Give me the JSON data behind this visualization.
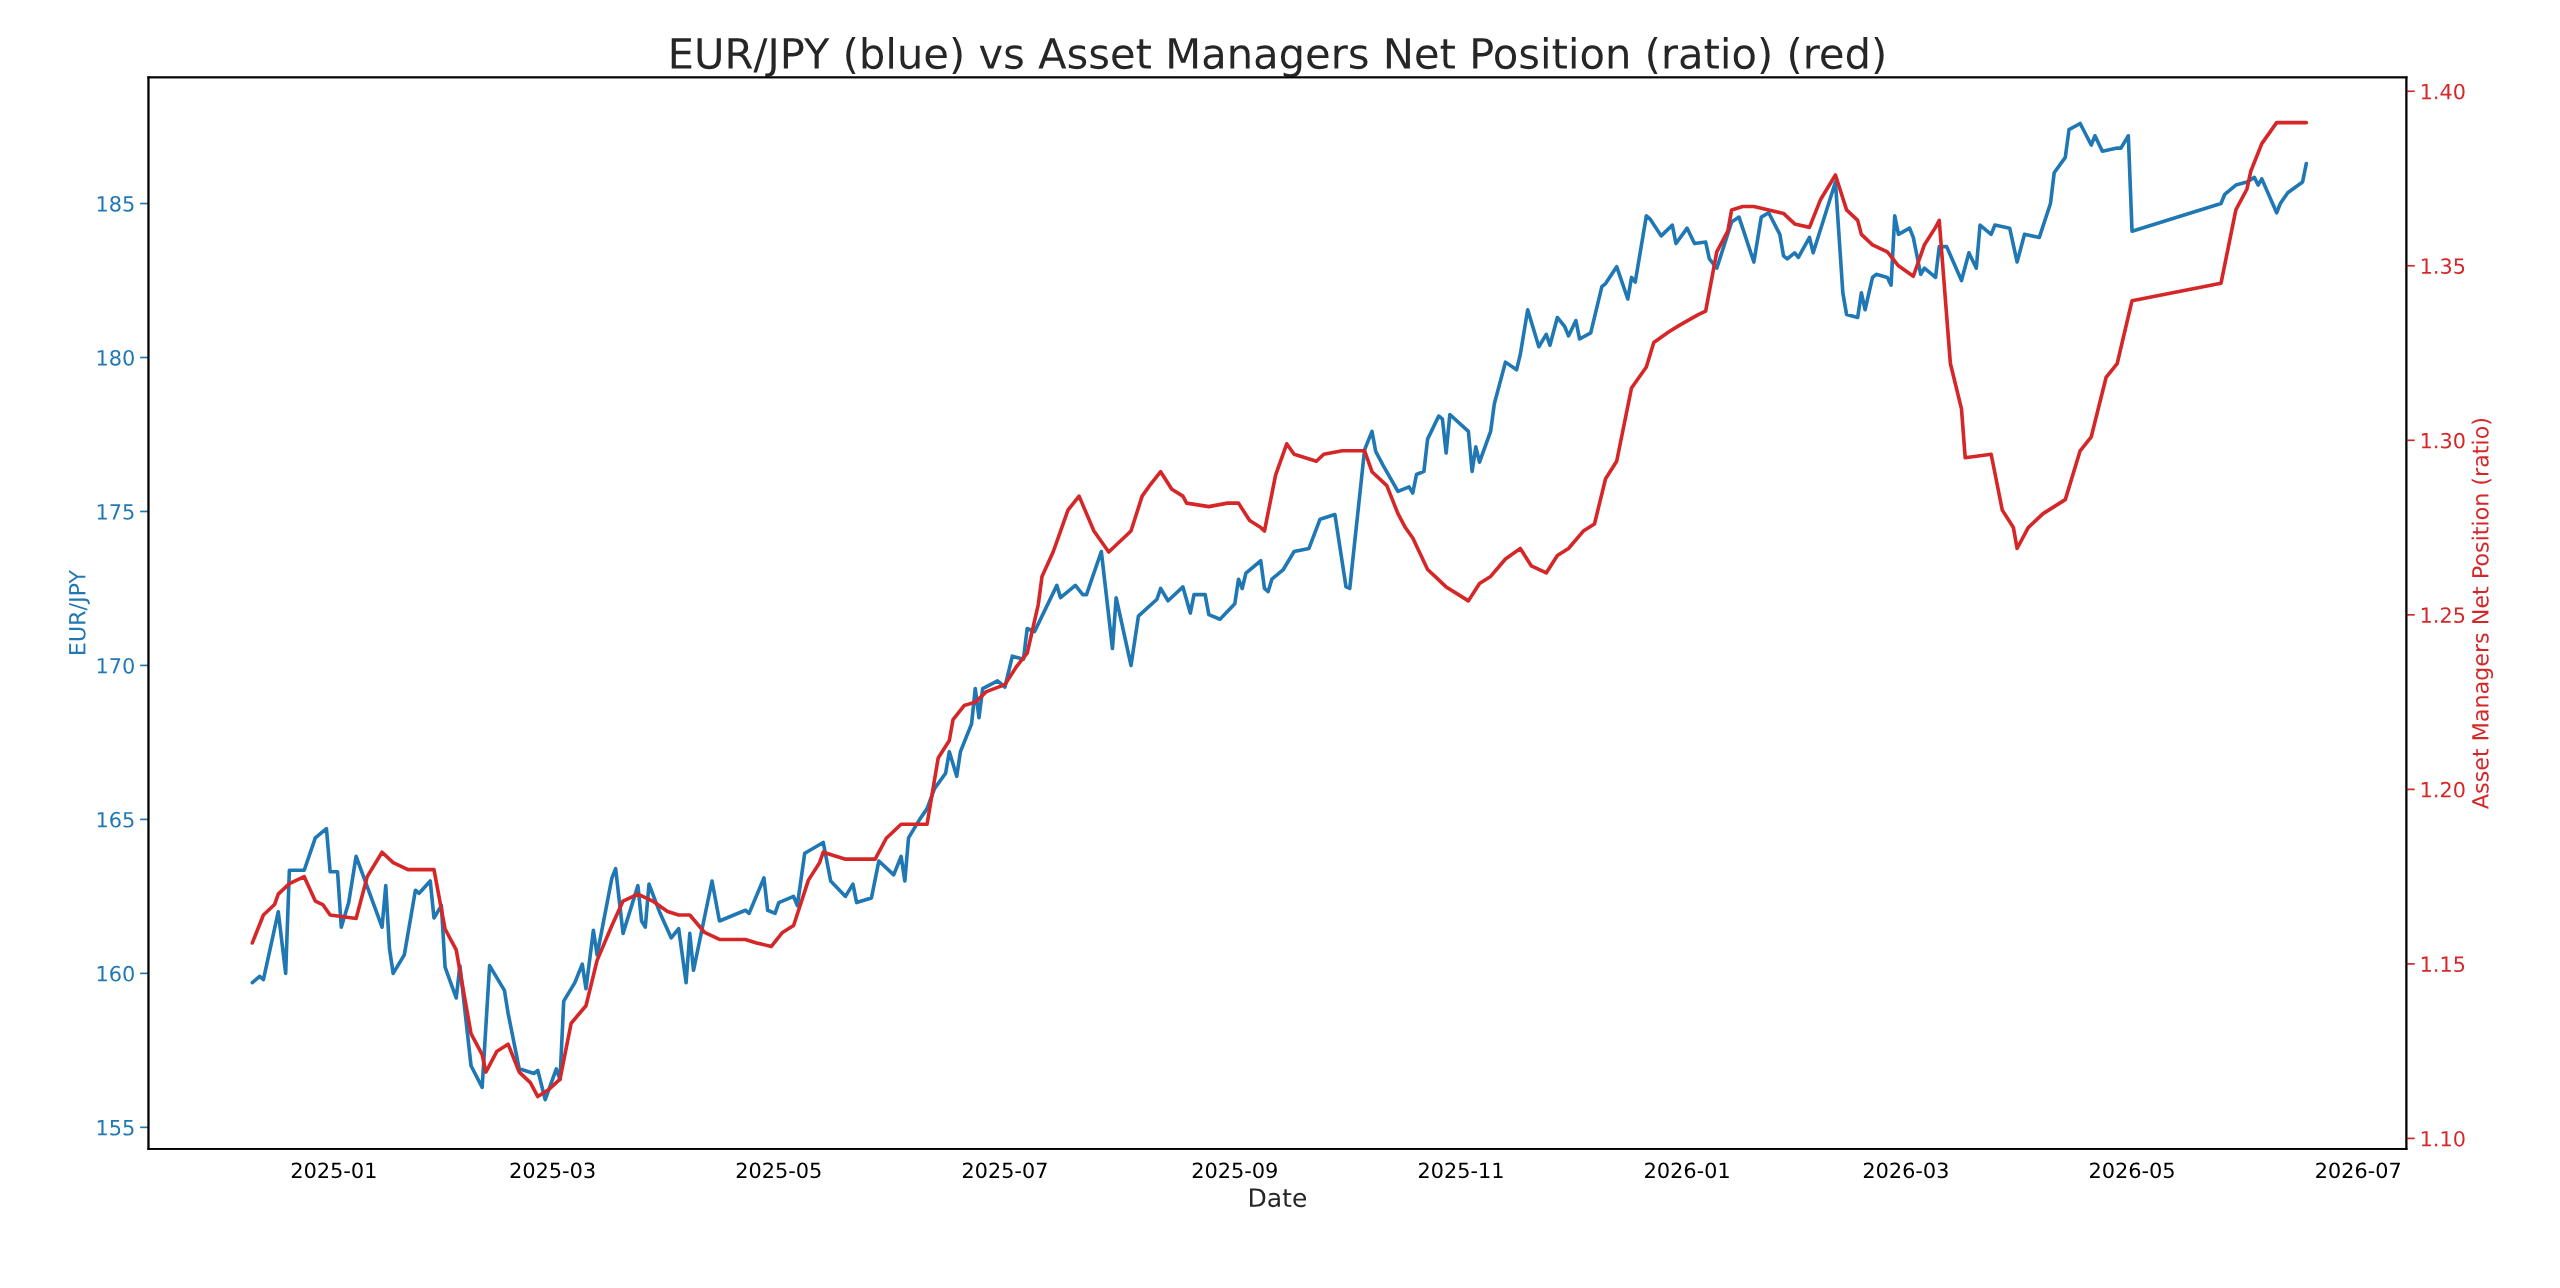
{
  "chart_data": {
    "type": "line",
    "title": "EUR/JPY (blue) vs Asset Managers Net Position (ratio) (red)",
    "xlabel": "Date",
    "ylabel": "EUR/JPY",
    "y2label": "Asset Managers Net Position (ratio)",
    "xlim": [
      "2024-11-12",
      "2026-07-14"
    ],
    "xticks": [
      "2025-01",
      "2025-03",
      "2025-05",
      "2025-07",
      "2025-09",
      "2025-11",
      "2026-01",
      "2026-03",
      "2026-05",
      "2026-07"
    ],
    "ylim": [
      154.3,
      189.1
    ],
    "yticks": [
      155,
      160,
      165,
      170,
      175,
      180,
      185
    ],
    "y2lim": [
      1.097,
      1.404
    ],
    "y2ticks": [
      {
        "value": 1.1,
        "label": "1.10"
      },
      {
        "value": 1.15,
        "label": "1.15"
      },
      {
        "value": 1.2,
        "label": "1.20"
      },
      {
        "value": 1.25,
        "label": "1.25"
      },
      {
        "value": 1.3,
        "label": "1.30"
      },
      {
        "value": 1.35,
        "label": "1.35"
      },
      {
        "value": 1.4,
        "label": "1.40"
      }
    ],
    "grid": false,
    "marker": "none",
    "line_style": "solid",
    "series": [
      {
        "color": "#1f77b4",
        "axis": "y",
        "x": [
          "2024-12-10",
          "2024-12-12",
          "2024-12-13",
          "2024-12-17",
          "2024-12-19",
          "2024-12-20",
          "2024-12-24",
          "2024-12-27",
          "2024-12-30",
          "2024-12-31",
          "2025-01-02",
          "2025-01-03",
          "2025-01-05",
          "2025-01-07",
          "2025-01-14",
          "2025-01-15",
          "2025-01-16",
          "2025-01-17",
          "2025-01-20",
          "2025-01-23",
          "2025-01-24",
          "2025-01-27",
          "2025-01-28",
          "2025-01-30",
          "2025-01-31",
          "2025-02-03",
          "2025-02-04",
          "2025-02-07",
          "2025-02-10",
          "2025-02-12",
          "2025-02-16",
          "2025-02-17",
          "2025-02-20",
          "2025-02-24",
          "2025-02-25",
          "2025-02-27",
          "2025-03-02",
          "2025-03-03",
          "2025-03-04",
          "2025-03-07",
          "2025-03-09",
          "2025-03-10",
          "2025-03-12",
          "2025-03-13",
          "2025-03-17",
          "2025-03-18",
          "2025-03-20",
          "2025-03-24",
          "2025-03-25",
          "2025-03-26",
          "2025-03-27",
          "2025-03-30",
          "2025-04-02",
          "2025-04-04",
          "2025-04-06",
          "2025-04-07",
          "2025-04-08",
          "2025-04-13",
          "2025-04-15",
          "2025-04-22",
          "2025-04-23",
          "2025-04-27",
          "2025-04-28",
          "2025-04-30",
          "2025-05-01",
          "2025-05-05",
          "2025-05-06",
          "2025-05-08",
          "2025-05-13",
          "2025-05-15",
          "2025-05-19",
          "2025-05-21",
          "2025-05-22",
          "2025-05-26",
          "2025-05-28",
          "2025-06-01",
          "2025-06-03",
          "2025-06-04",
          "2025-06-05",
          "2025-06-08",
          "2025-06-10",
          "2025-06-12",
          "2025-06-15",
          "2025-06-16",
          "2025-06-18",
          "2025-06-19",
          "2025-06-22",
          "2025-06-23",
          "2025-06-24",
          "2025-06-25",
          "2025-06-29",
          "2025-07-01",
          "2025-07-03",
          "2025-07-06",
          "2025-07-07",
          "2025-07-09",
          "2025-07-15",
          "2025-07-16",
          "2025-07-20",
          "2025-07-22",
          "2025-07-23",
          "2025-07-27",
          "2025-07-30",
          "2025-07-31",
          "2025-08-04",
          "2025-08-06",
          "2025-08-11",
          "2025-08-12",
          "2025-08-14",
          "2025-08-18",
          "2025-08-20",
          "2025-08-21",
          "2025-08-24",
          "2025-08-25",
          "2025-08-28",
          "2025-09-01",
          "2025-09-02",
          "2025-09-03",
          "2025-09-04",
          "2025-09-08",
          "2025-09-09",
          "2025-09-10",
          "2025-09-11",
          "2025-09-14",
          "2025-09-17",
          "2025-09-21",
          "2025-09-24",
          "2025-09-28",
          "2025-10-01",
          "2025-10-02",
          "2025-10-06",
          "2025-10-08",
          "2025-10-09",
          "2025-10-11",
          "2025-10-15",
          "2025-10-18",
          "2025-10-19",
          "2025-10-20",
          "2025-10-22",
          "2025-10-23",
          "2025-10-26",
          "2025-10-27",
          "2025-10-28",
          "2025-10-29",
          "2025-11-03",
          "2025-11-04",
          "2025-11-05",
          "2025-11-06",
          "2025-11-09",
          "2025-11-10",
          "2025-11-13",
          "2025-11-16",
          "2025-11-17",
          "2025-11-19",
          "2025-11-22",
          "2025-11-24",
          "2025-11-25",
          "2025-11-27",
          "2025-11-29",
          "2025-11-30",
          "2025-12-02",
          "2025-12-03",
          "2025-12-06",
          "2025-12-09",
          "2025-12-10",
          "2025-12-13",
          "2025-12-16",
          "2025-12-17",
          "2025-12-18",
          "2025-12-21",
          "2025-12-22",
          "2025-12-25",
          "2025-12-28",
          "2025-12-29",
          "2026-01-01",
          "2026-01-03",
          "2026-01-06",
          "2026-01-07",
          "2026-01-09",
          "2026-01-13",
          "2026-01-15",
          "2026-01-19",
          "2026-01-21",
          "2026-01-23",
          "2026-01-26",
          "2026-01-27",
          "2026-01-28",
          "2026-01-30",
          "2026-01-31",
          "2026-02-03",
          "2026-02-04",
          "2026-02-10",
          "2026-02-12",
          "2026-02-13",
          "2026-02-16",
          "2026-02-17",
          "2026-02-18",
          "2026-02-20",
          "2026-02-21",
          "2026-02-24",
          "2026-02-25",
          "2026-02-26",
          "2026-02-27",
          "2026-03-02",
          "2026-03-03",
          "2026-03-05",
          "2026-03-06",
          "2026-03-09",
          "2026-03-10",
          "2026-03-12",
          "2026-03-16",
          "2026-03-18",
          "2026-03-20",
          "2026-03-21",
          "2026-03-24",
          "2026-03-25",
          "2026-03-29",
          "2026-03-31",
          "2026-04-02",
          "2026-04-06",
          "2026-04-09",
          "2026-04-10",
          "2026-04-13",
          "2026-04-14",
          "2026-04-17",
          "2026-04-20",
          "2026-04-21",
          "2026-04-23",
          "2026-04-27",
          "2026-04-28",
          "2026-04-30",
          "2026-05-01",
          "2026-05-25",
          "2026-05-26",
          "2026-05-29",
          "2026-06-01",
          "2026-06-03",
          "2026-06-04",
          "2026-06-05",
          "2026-06-09",
          "2026-06-10",
          "2026-06-12",
          "2026-06-16",
          "2026-06-17"
        ],
        "values": [
          159.7,
          159.9,
          159.8,
          162.0,
          160.0,
          163.35,
          163.35,
          164.4,
          164.7,
          163.3,
          163.3,
          161.5,
          162.3,
          163.8,
          161.5,
          162.85,
          160.8,
          160.0,
          160.6,
          162.7,
          162.6,
          163.0,
          161.8,
          162.2,
          160.2,
          159.2,
          160.25,
          157.0,
          156.3,
          160.25,
          159.45,
          158.7,
          156.9,
          156.75,
          156.85,
          155.9,
          156.9,
          156.55,
          159.1,
          159.7,
          160.3,
          159.5,
          161.4,
          160.6,
          163.1,
          163.4,
          161.3,
          162.85,
          161.7,
          161.5,
          162.9,
          161.95,
          161.15,
          161.45,
          159.7,
          161.3,
          160.1,
          163.0,
          161.7,
          162.05,
          161.95,
          163.1,
          162.05,
          161.95,
          162.3,
          162.5,
          162.2,
          163.9,
          164.25,
          163.0,
          162.5,
          162.9,
          162.3,
          162.45,
          163.65,
          163.2,
          163.8,
          163.0,
          164.4,
          165.0,
          165.35,
          166.0,
          166.5,
          167.2,
          166.4,
          167.2,
          168.1,
          169.25,
          168.3,
          169.25,
          169.5,
          169.3,
          170.3,
          170.2,
          171.2,
          171.1,
          172.6,
          172.2,
          172.6,
          172.3,
          172.3,
          173.7,
          170.55,
          172.2,
          170.0,
          171.6,
          172.15,
          172.5,
          172.1,
          172.55,
          171.7,
          172.3,
          172.3,
          171.65,
          171.5,
          172.0,
          172.8,
          172.5,
          173.0,
          173.4,
          172.5,
          172.4,
          172.8,
          173.1,
          173.7,
          173.8,
          174.75,
          174.9,
          172.55,
          172.5,
          177.0,
          177.6,
          176.95,
          176.5,
          175.65,
          175.8,
          175.6,
          176.2,
          176.3,
          177.35,
          178.1,
          178.0,
          176.9,
          178.15,
          177.6,
          176.3,
          177.1,
          176.6,
          177.6,
          178.5,
          179.85,
          179.6,
          180.1,
          181.55,
          180.35,
          180.75,
          180.4,
          181.3,
          181.0,
          180.7,
          181.2,
          180.6,
          180.8,
          182.3,
          182.4,
          182.95,
          181.9,
          182.6,
          182.45,
          184.6,
          184.5,
          183.95,
          184.3,
          183.7,
          184.2,
          183.7,
          183.75,
          183.2,
          182.9,
          184.4,
          184.56,
          183.1,
          184.56,
          184.7,
          184.0,
          183.3,
          183.2,
          183.4,
          183.25,
          183.9,
          183.4,
          185.7,
          182.1,
          181.4,
          181.3,
          182.1,
          181.55,
          182.6,
          182.7,
          182.6,
          182.35,
          184.6,
          184.0,
          184.2,
          183.9,
          182.7,
          182.9,
          182.6,
          183.6,
          183.6,
          182.5,
          183.4,
          182.9,
          184.3,
          184.0,
          184.3,
          184.2,
          183.1,
          184.0,
          183.9,
          185.0,
          186.0,
          186.5,
          187.4,
          187.6,
          186.9,
          187.2,
          186.7,
          186.8,
          186.8,
          187.2,
          184.1,
          185.0,
          185.3,
          185.6,
          185.7,
          185.85,
          185.6,
          185.8,
          184.7,
          185.0,
          185.35,
          185.7,
          186.3
        ]
      },
      {
        "color": "#d62728",
        "axis": "y2",
        "x": [
          "2024-12-10",
          "2024-12-13",
          "2024-12-16",
          "2024-12-17",
          "2024-12-20",
          "2024-12-24",
          "2024-12-27",
          "2024-12-29",
          "2024-12-31",
          "2025-01-07",
          "2025-01-10",
          "2025-01-14",
          "2025-01-17",
          "2025-01-21",
          "2025-01-28",
          "2025-01-31",
          "2025-02-03",
          "2025-02-07",
          "2025-02-10",
          "2025-02-11",
          "2025-02-14",
          "2025-02-17",
          "2025-02-20",
          "2025-02-23",
          "2025-02-25",
          "2025-02-28",
          "2025-03-03",
          "2025-03-06",
          "2025-03-10",
          "2025-03-13",
          "2025-03-17",
          "2025-03-20",
          "2025-03-24",
          "2025-03-28",
          "2025-04-01",
          "2025-04-04",
          "2025-04-07",
          "2025-04-11",
          "2025-04-15",
          "2025-04-22",
          "2025-04-25",
          "2025-04-29",
          "2025-05-02",
          "2025-05-05",
          "2025-05-09",
          "2025-05-12",
          "2025-05-13",
          "2025-05-19",
          "2025-05-27",
          "2025-05-30",
          "2025-06-03",
          "2025-06-10",
          "2025-06-13",
          "2025-06-16",
          "2025-06-17",
          "2025-06-20",
          "2025-06-23",
          "2025-06-26",
          "2025-07-01",
          "2025-07-04",
          "2025-07-07",
          "2025-07-10",
          "2025-07-11",
          "2025-07-14",
          "2025-07-16",
          "2025-07-18",
          "2025-07-21",
          "2025-07-25",
          "2025-07-27",
          "2025-07-29",
          "2025-08-01",
          "2025-08-04",
          "2025-08-07",
          "2025-08-09",
          "2025-08-12",
          "2025-08-15",
          "2025-08-18",
          "2025-08-19",
          "2025-08-25",
          "2025-08-30",
          "2025-09-02",
          "2025-09-05",
          "2025-09-08",
          "2025-09-09",
          "2025-09-12",
          "2025-09-15",
          "2025-09-17",
          "2025-09-20",
          "2025-09-23",
          "2025-09-25",
          "2025-09-30",
          "2025-10-06",
          "2025-10-08",
          "2025-10-12",
          "2025-10-15",
          "2025-10-17",
          "2025-10-19",
          "2025-10-23",
          "2025-10-25",
          "2025-10-28",
          "2025-10-31",
          "2025-11-03",
          "2025-11-06",
          "2025-11-09",
          "2025-11-13",
          "2025-11-17",
          "2025-11-20",
          "2025-11-24",
          "2025-11-27",
          "2025-11-30",
          "2025-12-04",
          "2025-12-07",
          "2025-12-10",
          "2025-12-13",
          "2025-12-17",
          "2025-12-21",
          "2025-12-23",
          "2025-12-27",
          "2025-12-30",
          "2026-01-04",
          "2026-01-06",
          "2026-01-09",
          "2026-01-12",
          "2026-01-13",
          "2026-01-16",
          "2026-01-19",
          "2026-01-23",
          "2026-01-27",
          "2026-01-30",
          "2026-02-03",
          "2026-02-06",
          "2026-02-10",
          "2026-02-13",
          "2026-02-16",
          "2026-02-17",
          "2026-02-20",
          "2026-02-24",
          "2026-02-27",
          "2026-03-03",
          "2026-03-06",
          "2026-03-09",
          "2026-03-10",
          "2026-03-13",
          "2026-03-16",
          "2026-03-17",
          "2026-03-24",
          "2026-03-27",
          "2026-03-30",
          "2026-03-31",
          "2026-04-03",
          "2026-04-05",
          "2026-04-07",
          "2026-04-10",
          "2026-04-13",
          "2026-04-17",
          "2026-04-20",
          "2026-04-24",
          "2026-04-27",
          "2026-05-01",
          "2026-05-25",
          "2026-05-29",
          "2026-06-01",
          "2026-06-02",
          "2026-06-05",
          "2026-06-07",
          "2026-06-09",
          "2026-06-17"
        ],
        "values": [
          1.156,
          1.164,
          1.167,
          1.17,
          1.173,
          1.175,
          1.168,
          1.167,
          1.164,
          1.163,
          1.175,
          1.182,
          1.179,
          1.177,
          1.177,
          1.16,
          1.154,
          1.13,
          1.124,
          1.119,
          1.125,
          1.127,
          1.119,
          1.116,
          1.112,
          1.114,
          1.117,
          1.133,
          1.138,
          1.151,
          1.161,
          1.168,
          1.17,
          1.168,
          1.165,
          1.164,
          1.164,
          1.159,
          1.157,
          1.157,
          1.156,
          1.155,
          1.159,
          1.161,
          1.174,
          1.179,
          1.182,
          1.18,
          1.18,
          1.186,
          1.19,
          1.19,
          1.209,
          1.214,
          1.22,
          1.224,
          1.225,
          1.228,
          1.23,
          1.235,
          1.239,
          1.253,
          1.261,
          1.268,
          1.274,
          1.28,
          1.284,
          1.274,
          1.271,
          1.268,
          1.271,
          1.274,
          1.284,
          1.287,
          1.291,
          1.286,
          1.284,
          1.282,
          1.281,
          1.282,
          1.282,
          1.277,
          1.275,
          1.274,
          1.29,
          1.299,
          1.296,
          1.295,
          1.294,
          1.296,
          1.297,
          1.297,
          1.291,
          1.287,
          1.279,
          1.275,
          1.272,
          1.263,
          1.261,
          1.258,
          1.256,
          1.254,
          1.259,
          1.261,
          1.266,
          1.269,
          1.264,
          1.262,
          1.267,
          1.269,
          1.274,
          1.276,
          1.289,
          1.294,
          1.315,
          1.321,
          1.328,
          1.331,
          1.333,
          1.336,
          1.337,
          1.354,
          1.36,
          1.366,
          1.367,
          1.367,
          1.366,
          1.365,
          1.362,
          1.361,
          1.369,
          1.376,
          1.366,
          1.363,
          1.359,
          1.356,
          1.354,
          1.35,
          1.347,
          1.356,
          1.361,
          1.363,
          1.322,
          1.309,
          1.295,
          1.296,
          1.28,
          1.275,
          1.269,
          1.275,
          1.277,
          1.279,
          1.281,
          1.283,
          1.297,
          1.301,
          1.318,
          1.322,
          1.34,
          1.345,
          1.366,
          1.372,
          1.377,
          1.385,
          1.388,
          1.391,
          1.391
        ]
      }
    ]
  }
}
